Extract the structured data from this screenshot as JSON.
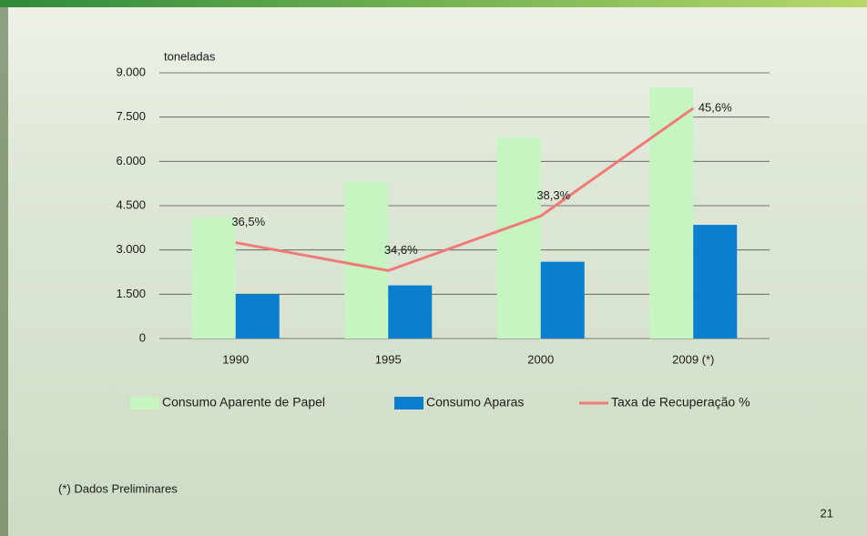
{
  "chart_data": {
    "type": "bar",
    "y_label": "toneladas",
    "categories": [
      "1990",
      "1995",
      "2000",
      "2009 (*)"
    ],
    "series": [
      {
        "name": "Consumo Aparente de Papel",
        "color": "#c6f5c2",
        "values": [
          4100,
          5300,
          6800,
          8500
        ]
      },
      {
        "name": "Consumo Aparas",
        "color": "#0b7fcf",
        "values": [
          1500,
          1800,
          2600,
          3850
        ]
      },
      {
        "name": "Taxa de Recuperação %",
        "color": "#f07a76",
        "type": "line",
        "axis": "y2",
        "values": [
          36.5,
          34.6,
          38.3,
          45.6
        ],
        "value_labels": [
          "36,5%",
          "34,6%",
          "38,3%",
          "45,6%"
        ]
      }
    ],
    "ylim": [
      0,
      9000
    ],
    "yticks": [
      0,
      {
        "value": 1500,
        "label": "1.500"
      },
      {
        "value": 3000,
        "label": "3.000"
      },
      {
        "value": 4500,
        "label": "4.500"
      },
      {
        "value": 6000,
        "label": "6.000"
      },
      {
        "value": 7500,
        "label": "7.500"
      },
      {
        "value": 9000,
        "label": "9.000"
      }
    ],
    "y2lim": [
      30,
      48
    ],
    "grid": true,
    "legend": "bottom"
  },
  "footnote": "(*) Dados Preliminares",
  "page_number": "21"
}
